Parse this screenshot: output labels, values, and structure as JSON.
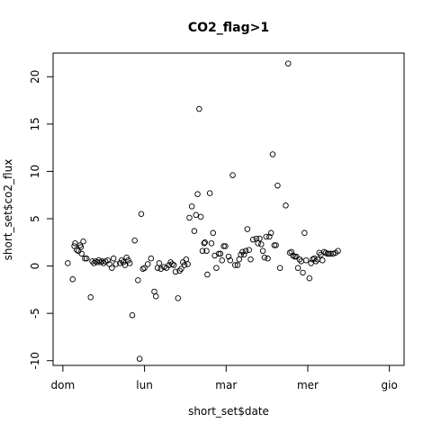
{
  "chart_data": {
    "type": "scatter",
    "title": "CO2_flag>1",
    "xlabel": "short_set$date",
    "ylabel": "short_set$co2_flux",
    "x_tick_labels": [
      "dom",
      "lun",
      "mar",
      "mer",
      "gio"
    ],
    "y_ticks": [
      -10,
      -5,
      0,
      5,
      10,
      15,
      20
    ],
    "xlim": [
      -0.12,
      4.18
    ],
    "ylim": [
      -10.5,
      22.5
    ],
    "grid": false,
    "legend": "none",
    "marker": "open circle",
    "colors": {
      "points": "#000000",
      "axes": "#000000",
      "background": "#ffffff"
    },
    "points": [
      {
        "x": 0.06,
        "y": 0.3
      },
      {
        "x": 0.12,
        "y": -1.4
      },
      {
        "x": 0.14,
        "y": 2.1
      },
      {
        "x": 0.15,
        "y": 2.4
      },
      {
        "x": 0.17,
        "y": 1.7
      },
      {
        "x": 0.19,
        "y": 1.6
      },
      {
        "x": 0.21,
        "y": 2.2
      },
      {
        "x": 0.22,
        "y": 2.0
      },
      {
        "x": 0.23,
        "y": 1.3
      },
      {
        "x": 0.25,
        "y": 2.6
      },
      {
        "x": 0.27,
        "y": 0.8
      },
      {
        "x": 0.29,
        "y": 0.8
      },
      {
        "x": 0.34,
        "y": -3.3
      },
      {
        "x": 0.36,
        "y": 0.5
      },
      {
        "x": 0.38,
        "y": 0.3
      },
      {
        "x": 0.4,
        "y": 0.5
      },
      {
        "x": 0.42,
        "y": 0.4
      },
      {
        "x": 0.44,
        "y": 0.6
      },
      {
        "x": 0.46,
        "y": 0.4
      },
      {
        "x": 0.48,
        "y": 0.5
      },
      {
        "x": 0.5,
        "y": 0.3
      },
      {
        "x": 0.52,
        "y": 0.5
      },
      {
        "x": 0.55,
        "y": 0.6
      },
      {
        "x": 0.57,
        "y": 0.2
      },
      {
        "x": 0.6,
        "y": -0.2
      },
      {
        "x": 0.62,
        "y": 0.8
      },
      {
        "x": 0.65,
        "y": 0.2
      },
      {
        "x": 0.7,
        "y": 0.3
      },
      {
        "x": 0.72,
        "y": 0.6
      },
      {
        "x": 0.74,
        "y": 0.4
      },
      {
        "x": 0.76,
        "y": 0.1
      },
      {
        "x": 0.78,
        "y": 0.9
      },
      {
        "x": 0.8,
        "y": 0.6
      },
      {
        "x": 0.82,
        "y": 0.3
      },
      {
        "x": 0.85,
        "y": -5.2
      },
      {
        "x": 0.88,
        "y": 2.7
      },
      {
        "x": 0.92,
        "y": -1.5
      },
      {
        "x": 0.94,
        "y": -9.8
      },
      {
        "x": 0.96,
        "y": 5.5
      },
      {
        "x": 0.98,
        "y": -0.3
      },
      {
        "x": 1.0,
        "y": -0.2
      },
      {
        "x": 1.04,
        "y": 0.2
      },
      {
        "x": 1.08,
        "y": 0.8
      },
      {
        "x": 1.12,
        "y": -2.7
      },
      {
        "x": 1.14,
        "y": -3.2
      },
      {
        "x": 1.16,
        "y": -0.2
      },
      {
        "x": 1.18,
        "y": 0.3
      },
      {
        "x": 1.2,
        "y": -0.3
      },
      {
        "x": 1.24,
        "y": -0.1
      },
      {
        "x": 1.27,
        "y": -0.2
      },
      {
        "x": 1.3,
        "y": 0.1
      },
      {
        "x": 1.32,
        "y": 0.4
      },
      {
        "x": 1.34,
        "y": 0.2
      },
      {
        "x": 1.36,
        "y": 0.1
      },
      {
        "x": 1.38,
        "y": -0.6
      },
      {
        "x": 1.41,
        "y": -3.4
      },
      {
        "x": 1.43,
        "y": -0.5
      },
      {
        "x": 1.45,
        "y": -0.3
      },
      {
        "x": 1.47,
        "y": 0.4
      },
      {
        "x": 1.49,
        "y": 0.1
      },
      {
        "x": 1.51,
        "y": 0.7
      },
      {
        "x": 1.53,
        "y": 0.2
      },
      {
        "x": 1.55,
        "y": 5.1
      },
      {
        "x": 1.58,
        "y": 6.3
      },
      {
        "x": 1.61,
        "y": 3.7
      },
      {
        "x": 1.63,
        "y": 5.4
      },
      {
        "x": 1.65,
        "y": 7.6
      },
      {
        "x": 1.67,
        "y": 16.6
      },
      {
        "x": 1.69,
        "y": 5.2
      },
      {
        "x": 1.71,
        "y": 1.6
      },
      {
        "x": 1.73,
        "y": 2.4
      },
      {
        "x": 1.74,
        "y": 2.5
      },
      {
        "x": 1.76,
        "y": 1.6
      },
      {
        "x": 1.77,
        "y": -0.9
      },
      {
        "x": 1.8,
        "y": 7.7
      },
      {
        "x": 1.82,
        "y": 2.4
      },
      {
        "x": 1.84,
        "y": 3.5
      },
      {
        "x": 1.86,
        "y": 1.1
      },
      {
        "x": 1.88,
        "y": -0.2
      },
      {
        "x": 1.91,
        "y": 1.3
      },
      {
        "x": 1.93,
        "y": 1.3
      },
      {
        "x": 1.95,
        "y": 0.6
      },
      {
        "x": 1.97,
        "y": 2.1
      },
      {
        "x": 1.99,
        "y": 2.1
      },
      {
        "x": 2.03,
        "y": 1.0
      },
      {
        "x": 2.05,
        "y": 0.6
      },
      {
        "x": 2.08,
        "y": 9.6
      },
      {
        "x": 2.11,
        "y": 0.1
      },
      {
        "x": 2.14,
        "y": 0.1
      },
      {
        "x": 2.16,
        "y": 0.7
      },
      {
        "x": 2.18,
        "y": 1.2
      },
      {
        "x": 2.2,
        "y": 1.5
      },
      {
        "x": 2.22,
        "y": 1.2
      },
      {
        "x": 2.24,
        "y": 1.6
      },
      {
        "x": 2.26,
        "y": 3.9
      },
      {
        "x": 2.28,
        "y": 1.7
      },
      {
        "x": 2.3,
        "y": 0.7
      },
      {
        "x": 2.33,
        "y": 2.8
      },
      {
        "x": 2.37,
        "y": 2.9
      },
      {
        "x": 2.39,
        "y": 2.4
      },
      {
        "x": 2.41,
        "y": 2.9
      },
      {
        "x": 2.43,
        "y": 2.3
      },
      {
        "x": 2.45,
        "y": 1.6
      },
      {
        "x": 2.47,
        "y": 0.9
      },
      {
        "x": 2.49,
        "y": 3.1
      },
      {
        "x": 2.51,
        "y": 0.8
      },
      {
        "x": 2.53,
        "y": 3.1
      },
      {
        "x": 2.55,
        "y": 3.5
      },
      {
        "x": 2.57,
        "y": 11.8
      },
      {
        "x": 2.59,
        "y": 2.2
      },
      {
        "x": 2.61,
        "y": 2.2
      },
      {
        "x": 2.63,
        "y": 8.5
      },
      {
        "x": 2.66,
        "y": -0.2
      },
      {
        "x": 2.73,
        "y": 6.4
      },
      {
        "x": 2.76,
        "y": 21.4
      },
      {
        "x": 2.78,
        "y": 1.4
      },
      {
        "x": 2.8,
        "y": 1.5
      },
      {
        "x": 2.82,
        "y": 1.1
      },
      {
        "x": 2.84,
        "y": 1.0
      },
      {
        "x": 2.86,
        "y": 1.0
      },
      {
        "x": 2.88,
        "y": -0.2
      },
      {
        "x": 2.9,
        "y": 0.7
      },
      {
        "x": 2.92,
        "y": 0.5
      },
      {
        "x": 2.94,
        "y": -0.7
      },
      {
        "x": 2.96,
        "y": 3.5
      },
      {
        "x": 2.98,
        "y": 0.6
      },
      {
        "x": 3.02,
        "y": -1.3
      },
      {
        "x": 3.04,
        "y": 0.3
      },
      {
        "x": 3.06,
        "y": 0.7
      },
      {
        "x": 3.08,
        "y": 0.8
      },
      {
        "x": 3.1,
        "y": 0.5
      },
      {
        "x": 3.12,
        "y": 0.7
      },
      {
        "x": 3.14,
        "y": 1.4
      },
      {
        "x": 3.16,
        "y": 1.2
      },
      {
        "x": 3.18,
        "y": 0.6
      },
      {
        "x": 3.2,
        "y": 1.5
      },
      {
        "x": 3.22,
        "y": 1.4
      },
      {
        "x": 3.24,
        "y": 1.3
      },
      {
        "x": 3.26,
        "y": 1.3
      },
      {
        "x": 3.28,
        "y": 1.3
      },
      {
        "x": 3.31,
        "y": 1.3
      },
      {
        "x": 3.34,
        "y": 1.4
      },
      {
        "x": 3.37,
        "y": 1.6
      }
    ]
  }
}
